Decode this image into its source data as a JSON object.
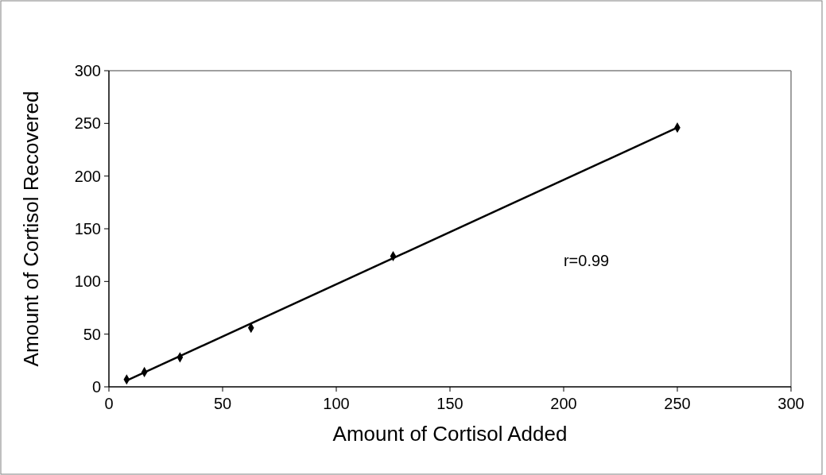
{
  "chart_data": {
    "type": "scatter",
    "xlabel": "Amount of Cortisol Added",
    "ylabel": "Amount of Cortisol Recovered",
    "xlim": [
      0,
      300
    ],
    "ylim": [
      0,
      300
    ],
    "xticks": [
      0,
      50,
      100,
      150,
      200,
      250,
      300
    ],
    "yticks": [
      0,
      50,
      100,
      150,
      200,
      250,
      300
    ],
    "grid": false,
    "annotations": [
      "r=0.99"
    ],
    "series": [
      {
        "color": "#000000",
        "marker": "diamond",
        "x": [
          7.8,
          15.6,
          31.25,
          62.5,
          125,
          250
        ],
        "values": [
          7,
          14,
          28,
          56,
          124,
          246
        ]
      },
      {
        "type": "line",
        "color": "#000000",
        "marker": "none",
        "line_style": "solid",
        "x": [
          7.8,
          250
        ],
        "values": [
          6,
          246
        ]
      }
    ]
  }
}
